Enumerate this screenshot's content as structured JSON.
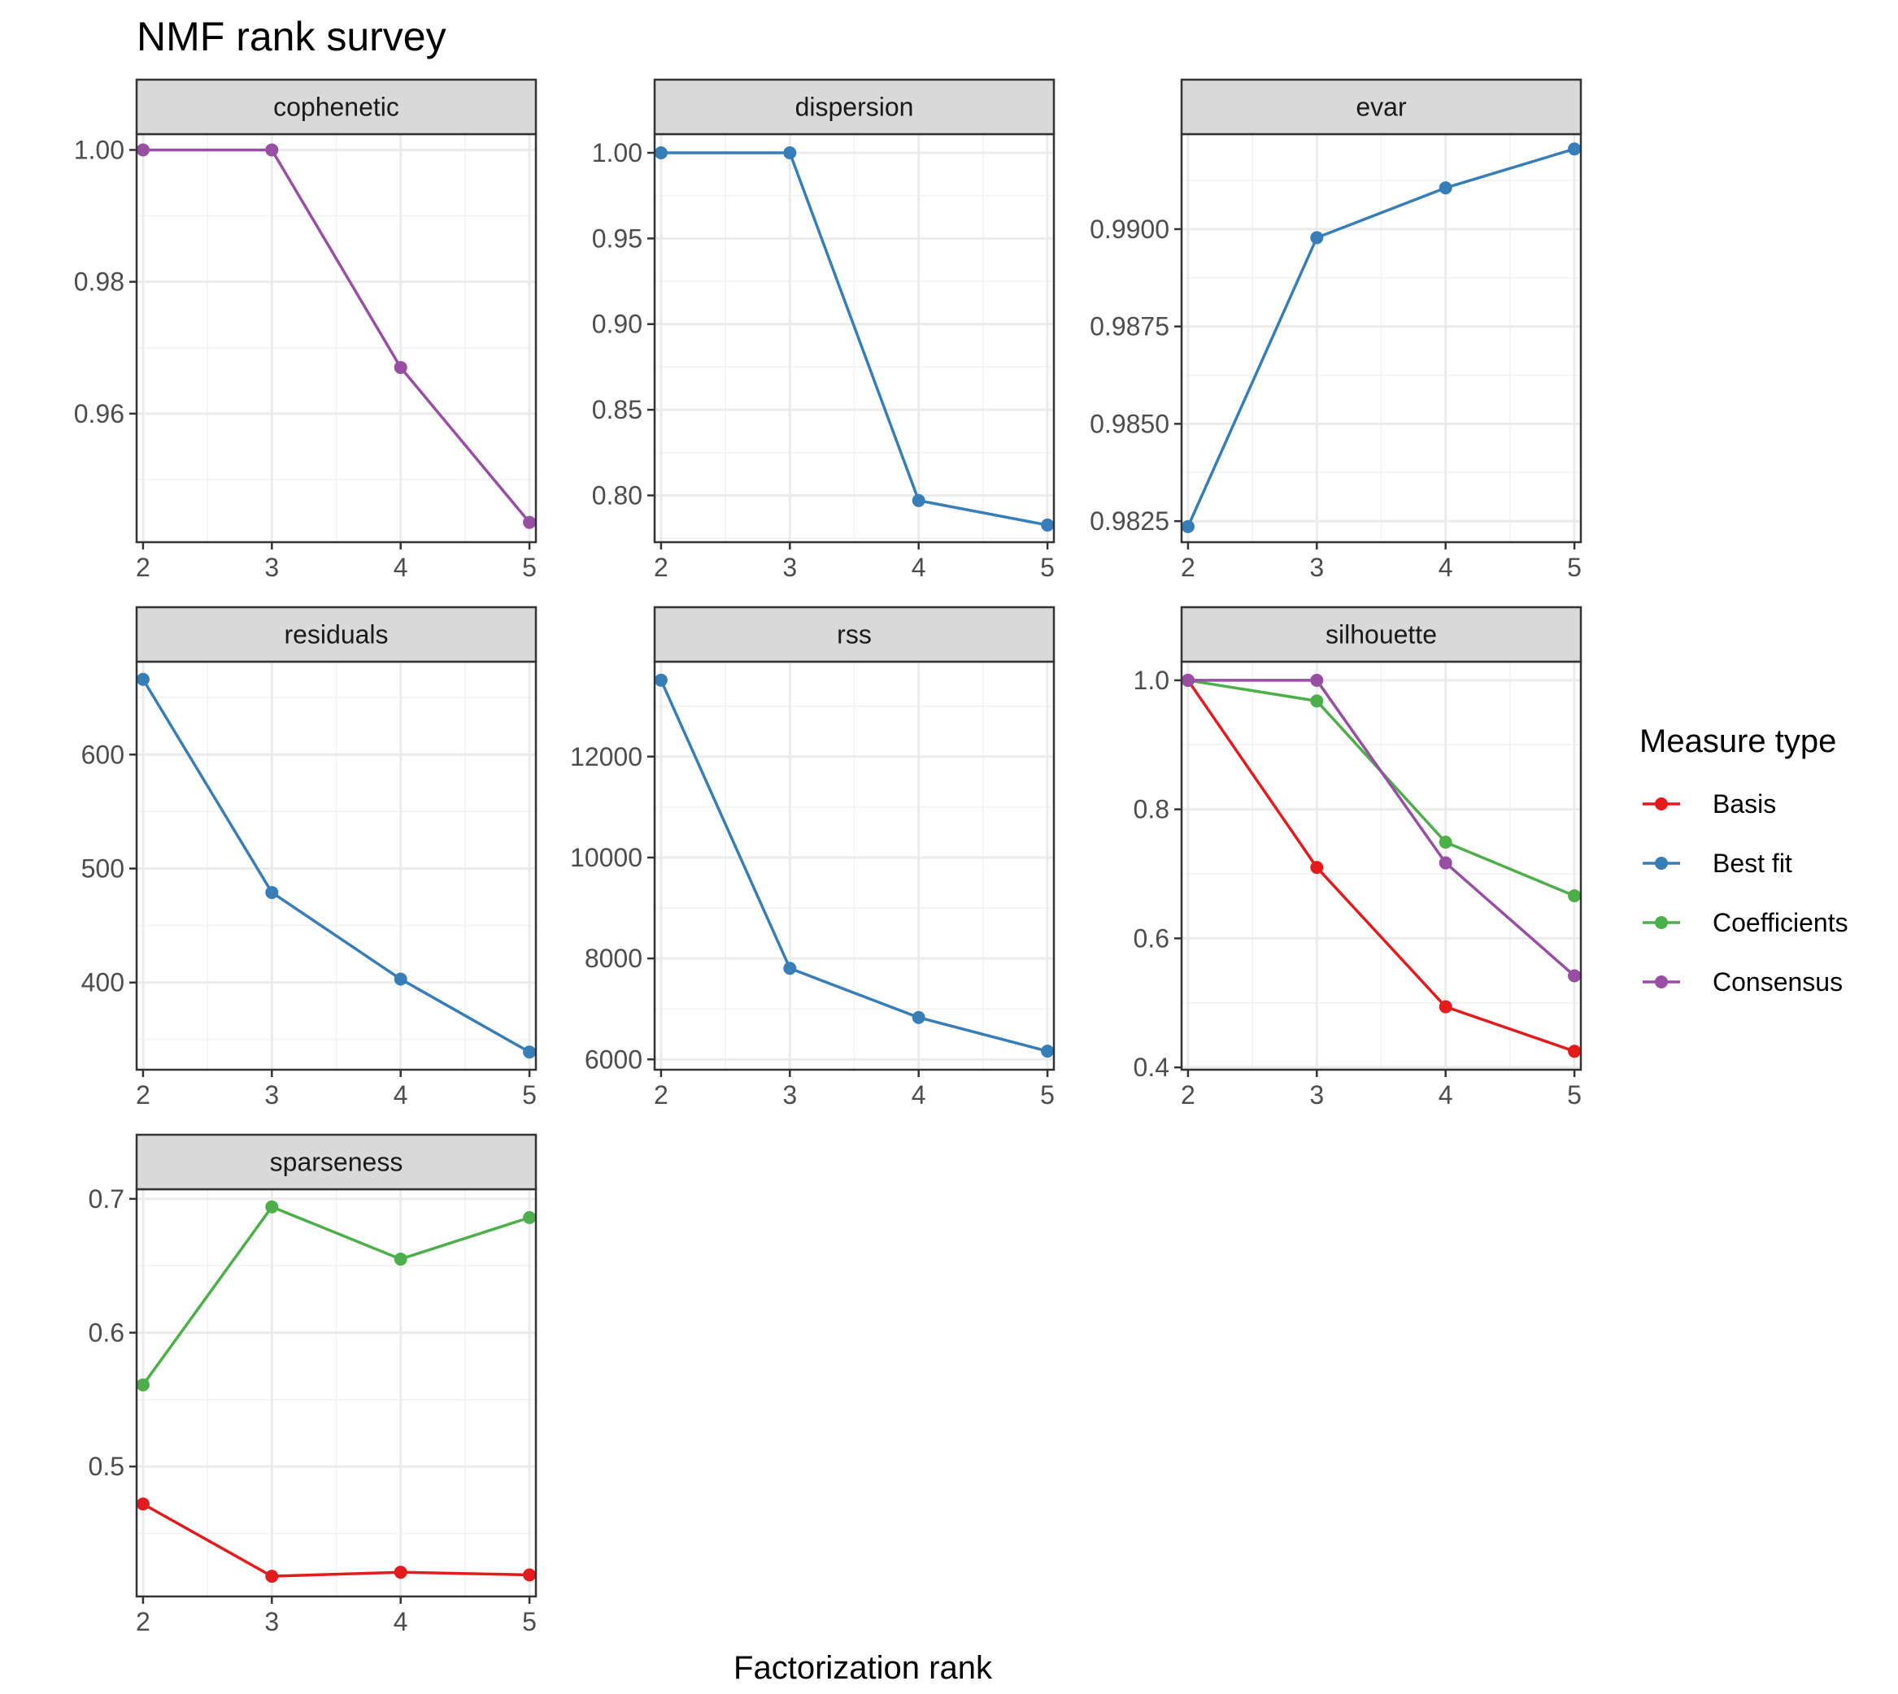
{
  "title": "NMF rank survey",
  "chart_data": {
    "type": "line",
    "title": "NMF rank survey",
    "xlabel": "Factorization rank",
    "x": [
      2,
      3,
      4,
      5
    ],
    "x_ticks": [
      "2",
      "3",
      "4",
      "5"
    ],
    "xlim": [
      1.95,
      5.05
    ],
    "legend": {
      "title": "Measure type",
      "placement": "right",
      "entries": [
        {
          "name": "Basis",
          "color": "#E41A1C"
        },
        {
          "name": "Best fit",
          "color": "#377EB8"
        },
        {
          "name": "Coefficients",
          "color": "#4DAF4A"
        },
        {
          "name": "Consensus",
          "color": "#984EA3"
        }
      ]
    },
    "grid": true,
    "panels": [
      {
        "strip": "cophenetic",
        "ylim": [
          0.9405,
          1.0024
        ],
        "y_ticks": [
          {
            "v": 0.96,
            "label": "0.96"
          },
          {
            "v": 0.98,
            "label": "0.98"
          },
          {
            "v": 1.0,
            "label": "1.00"
          }
        ],
        "series": [
          {
            "name": "Consensus",
            "values": [
              1.0,
              1.0,
              0.967,
              0.9435
            ]
          }
        ]
      },
      {
        "strip": "dispersion",
        "ylim": [
          0.7727,
          1.0109
        ],
        "y_ticks": [
          {
            "v": 0.8,
            "label": "0.80"
          },
          {
            "v": 0.85,
            "label": "0.85"
          },
          {
            "v": 0.9,
            "label": "0.90"
          },
          {
            "v": 0.95,
            "label": "0.95"
          },
          {
            "v": 1.0,
            "label": "1.00"
          }
        ],
        "series": [
          {
            "name": "Best fit",
            "values": [
              1.0,
              1.0,
              0.797,
              0.7827
            ]
          }
        ]
      },
      {
        "strip": "evar",
        "ylim": [
          0.98196,
          0.99244
        ],
        "y_ticks": [
          {
            "v": 0.9825,
            "label": "0.9825"
          },
          {
            "v": 0.985,
            "label": "0.9850"
          },
          {
            "v": 0.9875,
            "label": "0.9875"
          },
          {
            "v": 0.99,
            "label": "0.9900"
          }
        ],
        "series": [
          {
            "name": "Best fit",
            "values": [
              0.98236,
              0.98978,
              0.99106,
              0.99206
            ]
          }
        ]
      },
      {
        "strip": "residuals",
        "ylim": [
          323.5,
          681.5
        ],
        "y_ticks": [
          {
            "v": 400,
            "label": "400"
          },
          {
            "v": 500,
            "label": "500"
          },
          {
            "v": 600,
            "label": "600"
          }
        ],
        "series": [
          {
            "name": "Best fit",
            "values": [
              666,
              479,
              403,
              339
            ]
          }
        ]
      },
      {
        "strip": "rss",
        "ylim": [
          5795,
          13881
        ],
        "y_ticks": [
          {
            "v": 6000,
            "label": "6000"
          },
          {
            "v": 8000,
            "label": "8000"
          },
          {
            "v": 10000,
            "label": "10000"
          },
          {
            "v": 12000,
            "label": "12000"
          }
        ],
        "series": [
          {
            "name": "Best fit",
            "values": [
              13514,
              7804,
              6830,
              6163
            ]
          }
        ]
      },
      {
        "strip": "silhouette",
        "ylim": [
          0.3964,
          1.0289
        ],
        "y_ticks": [
          {
            "v": 0.4,
            "label": "0.4"
          },
          {
            "v": 0.6,
            "label": "0.6"
          },
          {
            "v": 0.8,
            "label": "0.8"
          },
          {
            "v": 1.0,
            "label": "1.0"
          }
        ],
        "series": [
          {
            "name": "Basis",
            "values": [
              1.0,
              0.71,
              0.494,
              0.425
            ]
          },
          {
            "name": "Coefficients",
            "values": [
              1.0,
              0.968,
              0.749,
              0.666
            ]
          },
          {
            "name": "Consensus",
            "values": [
              1.0,
              1.0,
              0.717,
              0.542
            ]
          }
        ]
      },
      {
        "strip": "sparseness",
        "ylim": [
          0.4029,
          0.7072
        ],
        "y_ticks": [
          {
            "v": 0.5,
            "label": "0.5"
          },
          {
            "v": 0.6,
            "label": "0.6"
          },
          {
            "v": 0.7,
            "label": "0.7"
          }
        ],
        "series": [
          {
            "name": "Basis",
            "values": [
              0.472,
              0.418,
              0.421,
              0.419
            ]
          },
          {
            "name": "Coefficients",
            "values": [
              0.561,
              0.694,
              0.655,
              0.686
            ]
          }
        ]
      }
    ]
  }
}
